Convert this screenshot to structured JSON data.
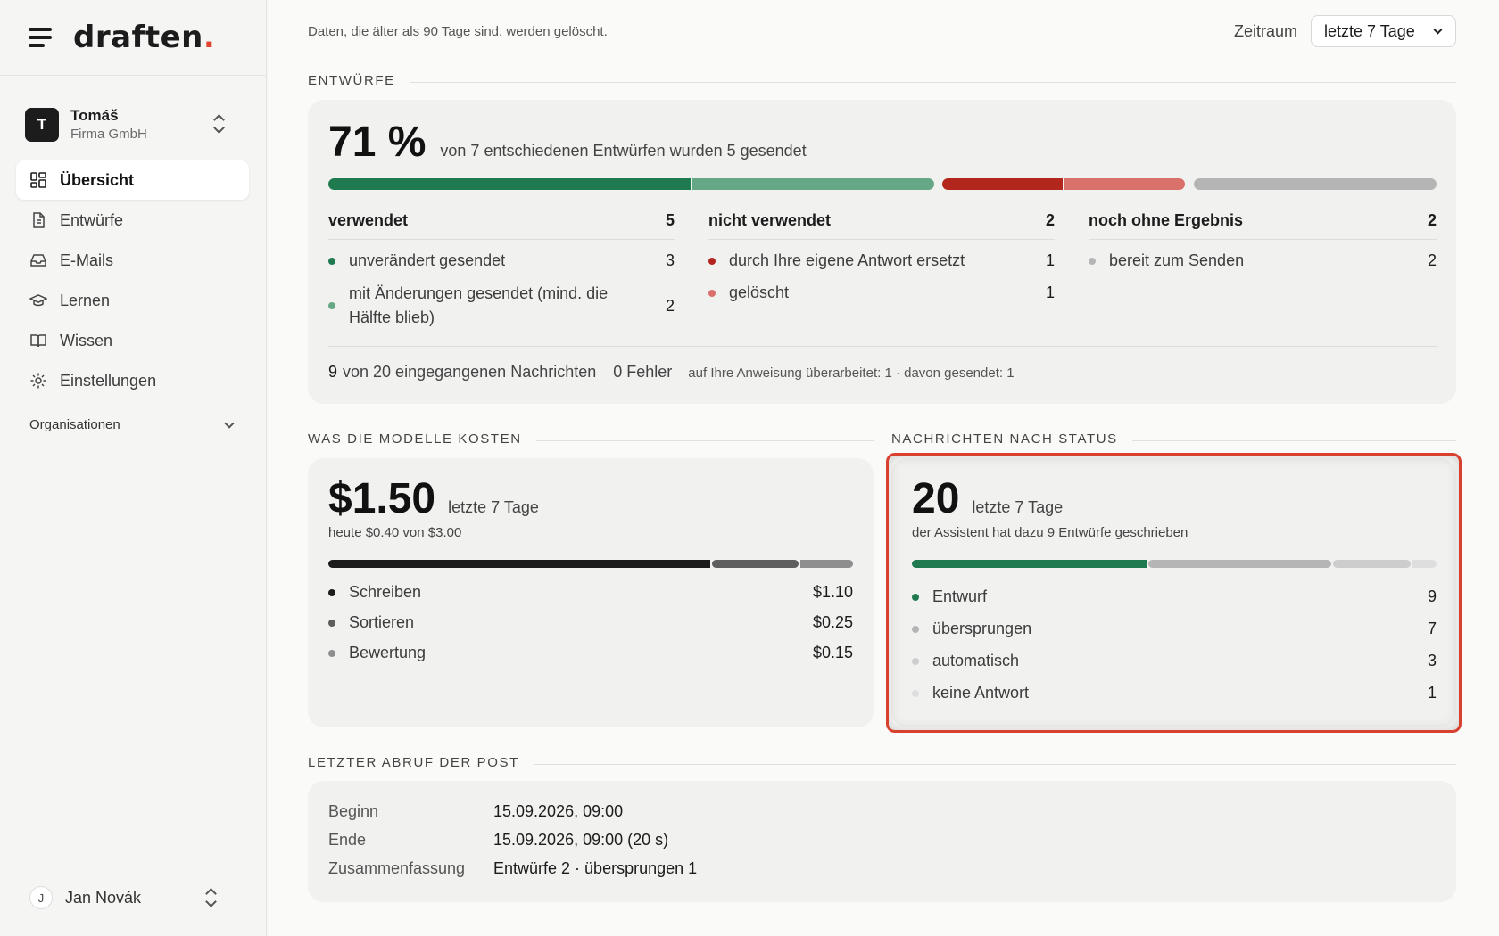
{
  "brand": {
    "logo_text": "draften",
    "logo_dot": "."
  },
  "account": {
    "initial": "T",
    "name": "Tomáš",
    "company": "Firma GmbH"
  },
  "nav": {
    "items": [
      {
        "label": "Übersicht",
        "icon": "dashboard-icon",
        "active": true
      },
      {
        "label": "Entwürfe",
        "icon": "document-icon"
      },
      {
        "label": "E-Mails",
        "icon": "inbox-icon"
      },
      {
        "label": "Lernen",
        "icon": "graduation-cap-icon"
      },
      {
        "label": "Wissen",
        "icon": "book-icon"
      },
      {
        "label": "Einstellungen",
        "icon": "gear-icon"
      }
    ],
    "org_label": "Organisationen"
  },
  "user": {
    "initial": "J",
    "name": "Jan Novák"
  },
  "topbar": {
    "retention_note": "Daten, die älter als 90 Tage sind, werden gelöscht.",
    "period_label": "Zeitraum",
    "period_value": "letzte 7 Tage"
  },
  "drafts": {
    "section_title": "ENTWÜRFE",
    "percent": "71 %",
    "caption": "von 7 entschiedenen Entwürfen wurden 5 gesendet",
    "used": {
      "title": "verwendet",
      "total": "5",
      "rows": [
        {
          "label": "unverändert gesendet",
          "value": "3"
        },
        {
          "label": "mit Änderungen gesendet (mind. die",
          "label2": "Hälfte blieb)",
          "value": "2"
        }
      ]
    },
    "not_used": {
      "title": "nicht verwendet",
      "total": "2",
      "rows": [
        {
          "label": "durch Ihre eigene Antwort ersetzt",
          "value": "1"
        },
        {
          "label": "gelöscht",
          "value": "1"
        }
      ]
    },
    "pending": {
      "title": "noch ohne Ergebnis",
      "total": "2",
      "rows": [
        {
          "label": "bereit zum Senden",
          "value": "2"
        }
      ]
    },
    "footer": {
      "incoming_num": "9",
      "incoming_text": "von 20 eingegangenen Nachrichten",
      "errors": "0 Fehler",
      "revised": "auf Ihre Anweisung überarbeitet: 1 · davon gesendet: 1"
    }
  },
  "costs": {
    "section_title": "WAS DIE MODELLE KOSTEN",
    "total": "$1.50",
    "period": "letzte 7 Tage",
    "today": "heute $0.40 von $3.00",
    "items": [
      {
        "label": "Schreiben",
        "value": "$1.10",
        "share": 1.1
      },
      {
        "label": "Sortieren",
        "value": "$0.25",
        "share": 0.25
      },
      {
        "label": "Bewertung",
        "value": "$0.15",
        "share": 0.15
      }
    ]
  },
  "status": {
    "section_title": "NACHRICHTEN NACH STATUS",
    "total": "20",
    "period": "letzte 7 Tage",
    "subtitle": "der Assistent hat dazu 9 Entwürfe geschrieben",
    "items": [
      {
        "label": "Entwurf",
        "value": "9",
        "count": 9
      },
      {
        "label": "übersprungen",
        "value": "7",
        "count": 7
      },
      {
        "label": "automatisch",
        "value": "3",
        "count": 3
      },
      {
        "label": "keine Antwort",
        "value": "1",
        "count": 1
      }
    ]
  },
  "fetch": {
    "section_title": "LETZTER ABRUF DER POST",
    "rows": [
      {
        "key": "Beginn",
        "value": "15.09.2026, 09:00"
      },
      {
        "key": "Ende",
        "value": "15.09.2026, 09:00 (20 s)"
      },
      {
        "key": "Zusammenfassung",
        "value": "Entwürfe 2 · übersprungen 1"
      }
    ]
  },
  "colors": {
    "green_dark": "#1f7a4f",
    "green_light": "#66a885",
    "red_dark": "#b3261e",
    "red_light": "#d9706a",
    "gray": "#b5b5b5",
    "gray_light": "#d2d2d2",
    "highlight": "#d9412f"
  }
}
